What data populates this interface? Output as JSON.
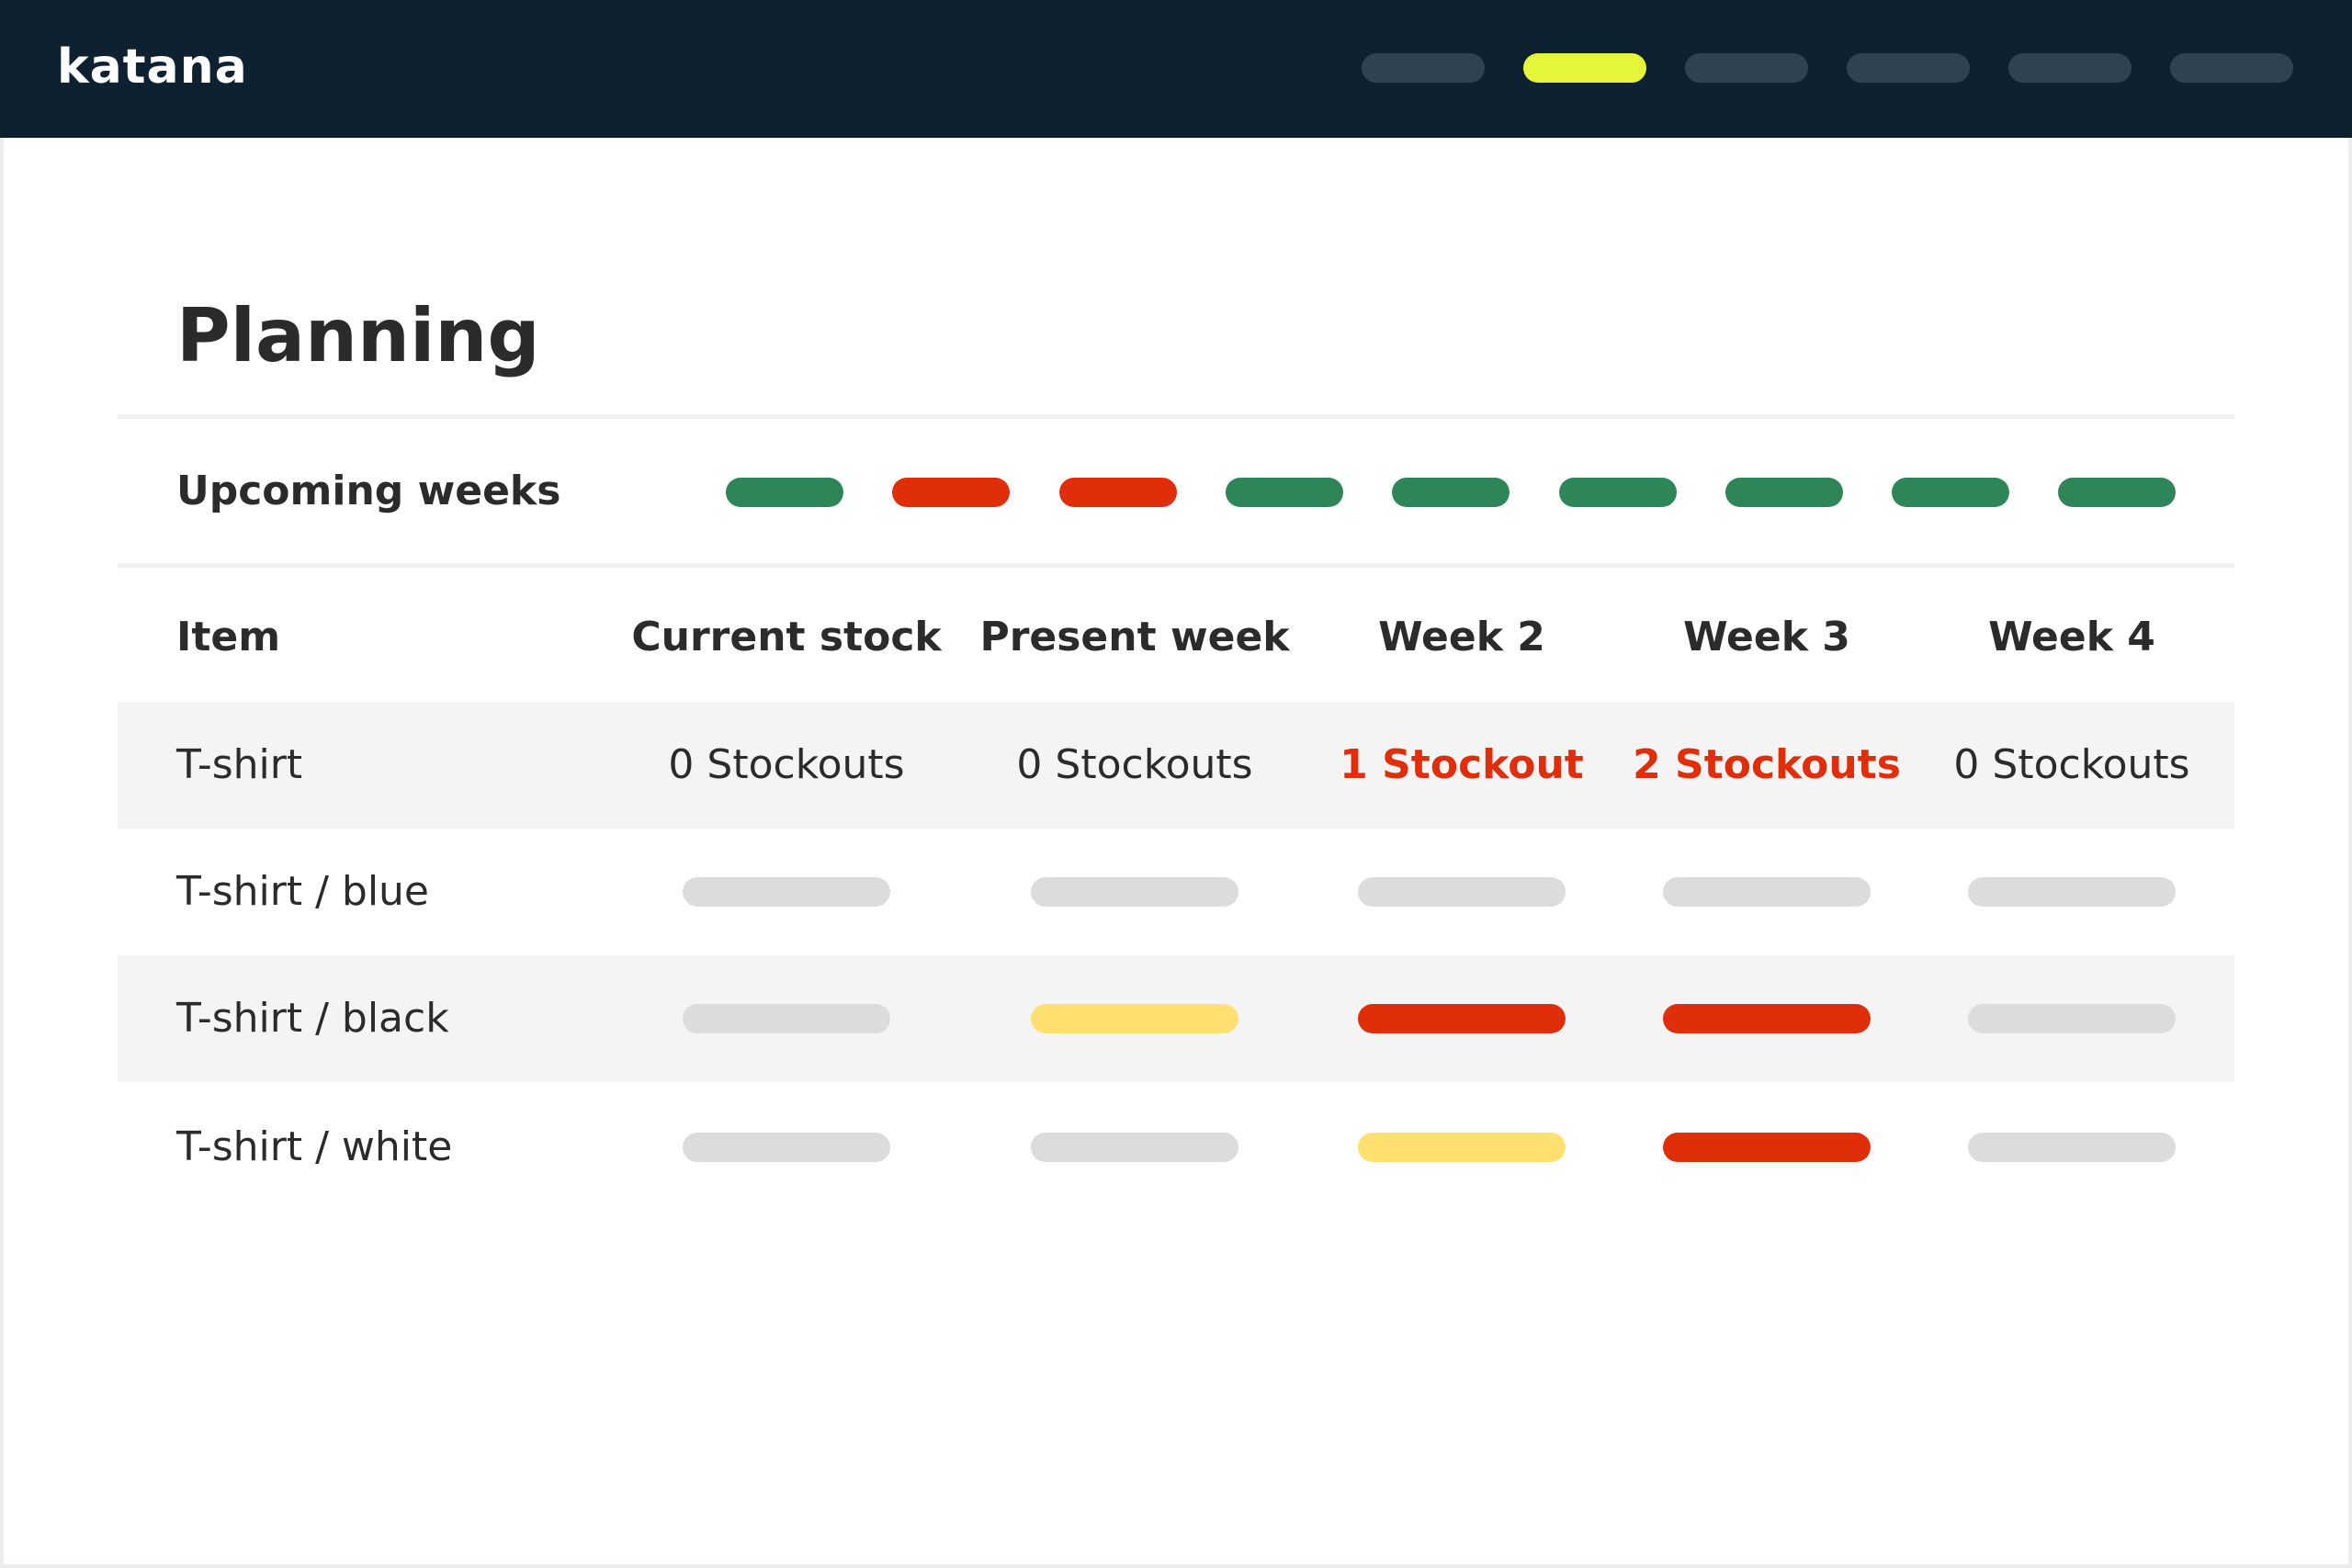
{
  "app": {
    "logo_text": "katana"
  },
  "colors": {
    "topbar": "#0d2131",
    "nav_inactive": "#2e4252",
    "nav_active": "#e4f53a",
    "ok_green": "#2e8558",
    "alert_red": "#e02d0a",
    "warn_yellow": "#ffe070",
    "neutral_gray": "#dcdcdc"
  },
  "nav": {
    "items": [
      {
        "state": "inactive"
      },
      {
        "state": "active"
      },
      {
        "state": "inactive"
      },
      {
        "state": "inactive"
      },
      {
        "state": "inactive"
      },
      {
        "state": "inactive"
      }
    ]
  },
  "page": {
    "title": "Planning"
  },
  "upcoming": {
    "label": "Upcoming weeks",
    "weeks": [
      "ok",
      "alert",
      "alert",
      "ok",
      "ok",
      "ok",
      "ok",
      "ok",
      "ok"
    ]
  },
  "table": {
    "columns": [
      "Item",
      "Current stock",
      "Present week",
      "Week 2",
      "Week 3",
      "Week 4"
    ],
    "rows": [
      {
        "item": "T-shirt",
        "cells": [
          {
            "text": "0 Stockouts",
            "alert": false
          },
          {
            "text": "0 Stockouts",
            "alert": false
          },
          {
            "text": "1 Stockout",
            "alert": true
          },
          {
            "text": "2 Stockouts",
            "alert": true
          },
          {
            "text": "0 Stockouts",
            "alert": false
          }
        ]
      },
      {
        "item": "T-shirt / blue",
        "statuses": [
          "neutral",
          "neutral",
          "neutral",
          "neutral",
          "neutral"
        ]
      },
      {
        "item": "T-shirt / black",
        "statuses": [
          "neutral",
          "warn",
          "alert",
          "alert",
          "neutral"
        ]
      },
      {
        "item": "T-shirt / white",
        "statuses": [
          "neutral",
          "neutral",
          "warn",
          "alert",
          "neutral"
        ]
      }
    ]
  }
}
